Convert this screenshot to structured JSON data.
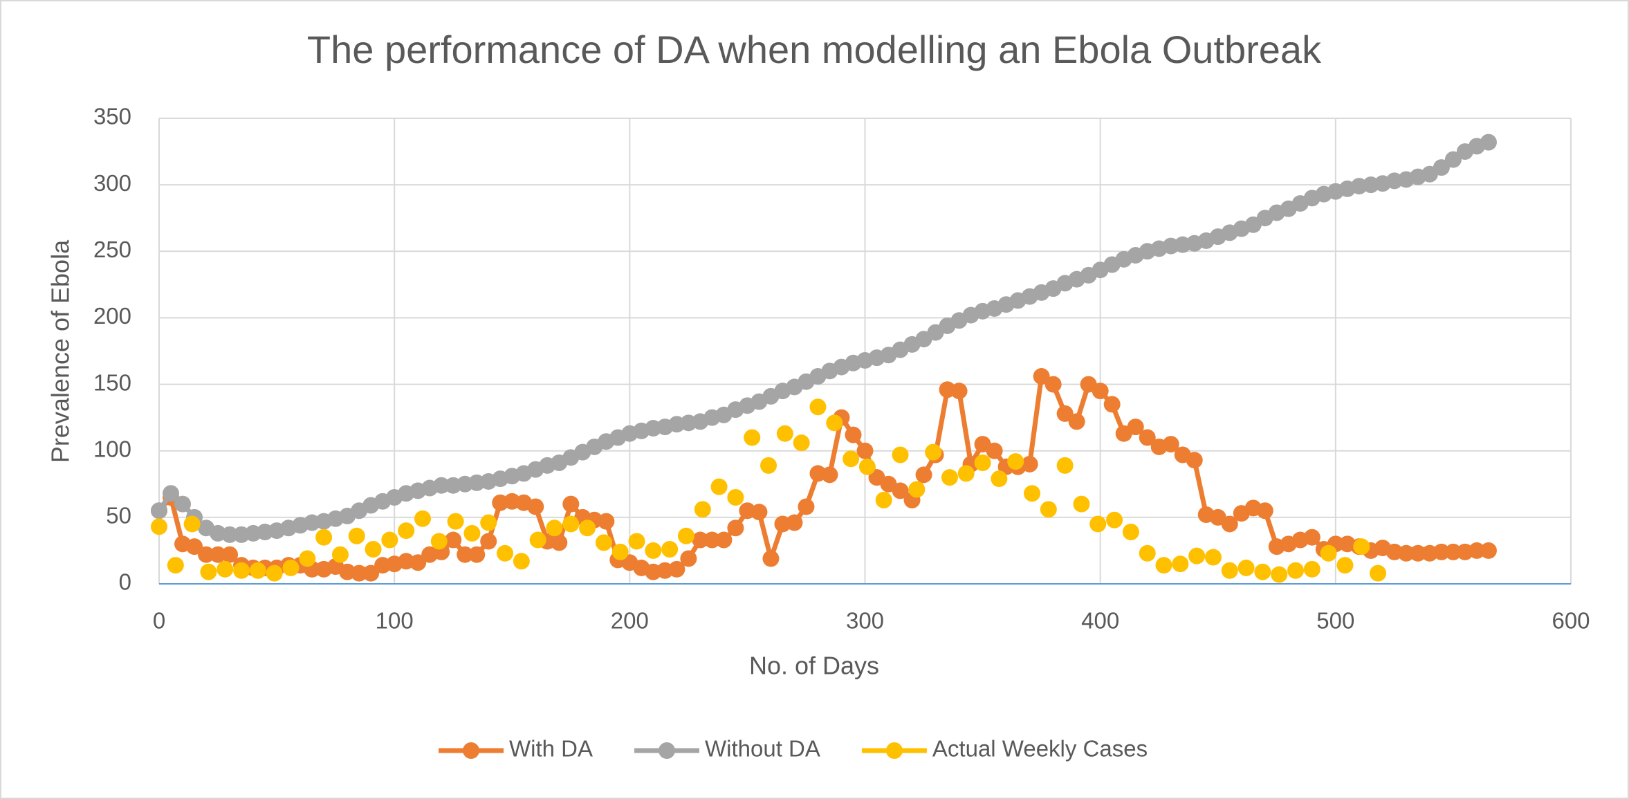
{
  "chart_data": {
    "type": "line",
    "title": "The performance of DA when modelling an Ebola Outbreak",
    "x_label": "No. of Days",
    "y_label": "Prevalence of Ebola",
    "xlim": [
      0,
      600
    ],
    "xticks": [
      0,
      100,
      200,
      300,
      400,
      500,
      600
    ],
    "ylim": [
      0,
      350
    ],
    "yticks": [
      0,
      50,
      100,
      150,
      200,
      250,
      300,
      350
    ],
    "grid": true,
    "legend": "bottom",
    "series": [
      {
        "name": "With DA",
        "color": "#ed7d31",
        "line": true,
        "x": [
          0,
          5,
          10,
          15,
          20,
          25,
          30,
          35,
          40,
          45,
          50,
          55,
          60,
          65,
          70,
          75,
          80,
          85,
          90,
          95,
          100,
          105,
          110,
          115,
          120,
          125,
          130,
          135,
          140,
          145,
          150,
          155,
          160,
          165,
          170,
          175,
          180,
          185,
          190,
          195,
          200,
          205,
          210,
          215,
          220,
          225,
          230,
          235,
          240,
          245,
          250,
          255,
          260,
          265,
          270,
          275,
          280,
          285,
          290,
          295,
          300,
          305,
          310,
          315,
          320,
          325,
          330,
          335,
          340,
          345,
          350,
          355,
          360,
          365,
          370,
          375,
          380,
          385,
          390,
          395,
          400,
          405,
          410,
          415,
          420,
          425,
          430,
          435,
          440,
          445,
          450,
          455,
          460,
          465,
          470,
          475,
          480,
          485,
          490,
          495,
          500,
          505,
          510,
          515,
          520,
          525,
          530,
          535,
          540,
          545,
          550,
          555,
          560,
          565
        ],
        "values": [
          55,
          65,
          30,
          28,
          22,
          22,
          22,
          14,
          12,
          12,
          12,
          14,
          14,
          11,
          11,
          13,
          9,
          8,
          8,
          14,
          15,
          17,
          16,
          22,
          24,
          33,
          22,
          22,
          32,
          61,
          62,
          61,
          58,
          32,
          31,
          60,
          50,
          48,
          47,
          18,
          16,
          12,
          9,
          10,
          11,
          19,
          33,
          33,
          33,
          42,
          55,
          54,
          19,
          45,
          46,
          58,
          83,
          82,
          125,
          112,
          100,
          80,
          75,
          70,
          63,
          82,
          97,
          146,
          145,
          90,
          105,
          100,
          88,
          88,
          90,
          156,
          150,
          128,
          122,
          150,
          145,
          135,
          113,
          118,
          110,
          103,
          105,
          97,
          93,
          52,
          50,
          45,
          53,
          57,
          55,
          28,
          30,
          33,
          35,
          26,
          30,
          30,
          28,
          25,
          27,
          24,
          23,
          23,
          23,
          24,
          24,
          24,
          25,
          25
        ]
      },
      {
        "name": "Without DA",
        "color": "#a5a5a5",
        "line": true,
        "x": [
          0,
          5,
          10,
          15,
          20,
          25,
          30,
          35,
          40,
          45,
          50,
          55,
          60,
          65,
          70,
          75,
          80,
          85,
          90,
          95,
          100,
          105,
          110,
          115,
          120,
          125,
          130,
          135,
          140,
          145,
          150,
          155,
          160,
          165,
          170,
          175,
          180,
          185,
          190,
          195,
          200,
          205,
          210,
          215,
          220,
          225,
          230,
          235,
          240,
          245,
          250,
          255,
          260,
          265,
          270,
          275,
          280,
          285,
          290,
          295,
          300,
          305,
          310,
          315,
          320,
          325,
          330,
          335,
          340,
          345,
          350,
          355,
          360,
          365,
          370,
          375,
          380,
          385,
          390,
          395,
          400,
          405,
          410,
          415,
          420,
          425,
          430,
          435,
          440,
          445,
          450,
          455,
          460,
          465,
          470,
          475,
          480,
          485,
          490,
          495,
          500,
          505,
          510,
          515,
          520,
          525,
          530,
          535,
          540,
          545,
          550,
          555,
          560,
          565
        ],
        "values": [
          55,
          68,
          60,
          50,
          42,
          38,
          37,
          37,
          38,
          39,
          40,
          42,
          44,
          46,
          47,
          49,
          51,
          55,
          59,
          62,
          65,
          68,
          70,
          72,
          74,
          74,
          75,
          76,
          77,
          79,
          81,
          83,
          86,
          89,
          91,
          95,
          99,
          103,
          107,
          110,
          113,
          115,
          117,
          118,
          120,
          121,
          122,
          125,
          127,
          131,
          134,
          137,
          141,
          145,
          148,
          152,
          156,
          160,
          163,
          166,
          168,
          170,
          172,
          176,
          180,
          184,
          189,
          194,
          198,
          202,
          205,
          207,
          210,
          213,
          216,
          219,
          222,
          226,
          229,
          232,
          236,
          240,
          244,
          247,
          250,
          252,
          254,
          255,
          256,
          258,
          261,
          264,
          267,
          270,
          275,
          279,
          282,
          286,
          290,
          293,
          295,
          297,
          299,
          300,
          301,
          303,
          304,
          306,
          308,
          313,
          319,
          325,
          329,
          332
        ]
      },
      {
        "name": "Actual Weekly Cases",
        "color": "#ffc000",
        "line": false,
        "x": [
          0,
          7,
          14,
          21,
          28,
          35,
          42,
          49,
          56,
          63,
          70,
          77,
          84,
          91,
          98,
          105,
          112,
          119,
          126,
          133,
          140,
          147,
          154,
          161,
          168,
          175,
          182,
          189,
          196,
          203,
          210,
          217,
          224,
          231,
          238,
          245,
          252,
          259,
          266,
          273,
          280,
          287,
          294,
          301,
          308,
          315,
          322,
          329,
          336,
          343,
          350,
          357,
          364,
          371,
          378,
          385,
          392,
          399,
          406,
          413,
          420,
          427,
          434,
          441,
          448,
          455,
          462,
          469,
          476,
          483,
          490,
          497,
          504,
          511,
          518
        ],
        "values": [
          43,
          14,
          45,
          9,
          11,
          10,
          10,
          8,
          12,
          19,
          35,
          22,
          36,
          26,
          33,
          40,
          49,
          32,
          47,
          38,
          46,
          23,
          17,
          33,
          42,
          45,
          42,
          31,
          24,
          32,
          25,
          26,
          36,
          56,
          73,
          65,
          110,
          89,
          113,
          106,
          133,
          121,
          94,
          88,
          63,
          97,
          71,
          99,
          80,
          83,
          91,
          79,
          92,
          68,
          56,
          89,
          60,
          45,
          48,
          39,
          23,
          14,
          15,
          21,
          20,
          10,
          12,
          9,
          7,
          10,
          11,
          23,
          14,
          28,
          8
        ]
      }
    ]
  }
}
